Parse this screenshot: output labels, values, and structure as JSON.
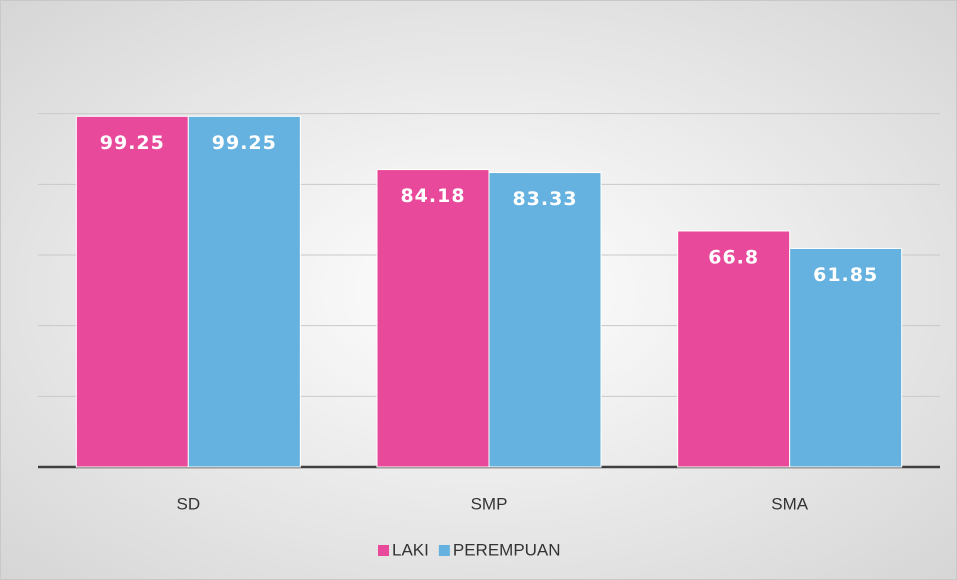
{
  "chart_data": {
    "type": "bar",
    "categories": [
      "SD",
      "SMP",
      "SMA"
    ],
    "series": [
      {
        "name": "LAKI",
        "color": "#e8499a",
        "values": [
          99.25,
          84.18,
          66.8
        ]
      },
      {
        "name": "PEREMPUAN",
        "color": "#65b1e0",
        "values": [
          99.25,
          83.33,
          61.85
        ]
      }
    ],
    "ylim": [
      0,
      120
    ],
    "yticks": [
      0,
      20,
      40,
      60,
      80,
      100
    ],
    "grid": true,
    "legend": "bottom"
  }
}
